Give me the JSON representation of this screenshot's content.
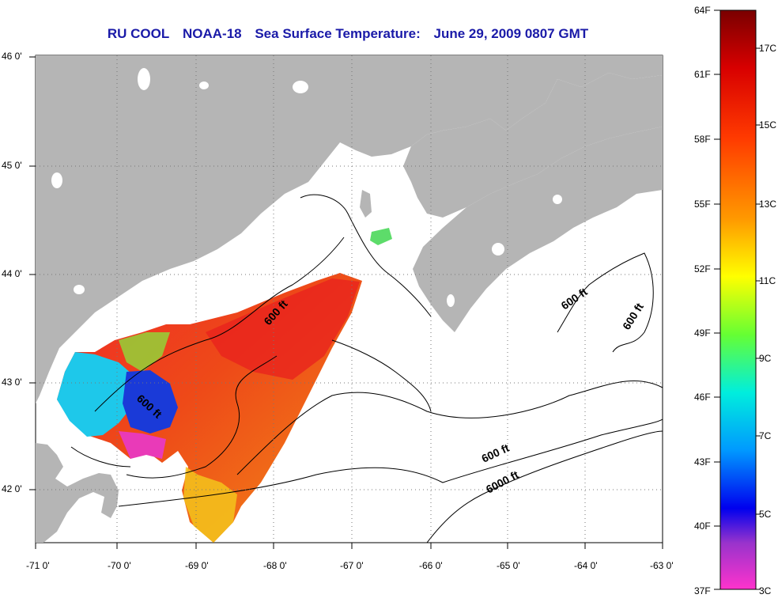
{
  "title": {
    "org": "RU COOL",
    "satellite": "NOAA-18",
    "product": "Sea Surface Temperature:",
    "datetime": "June 29, 2009 0807 GMT"
  },
  "axes": {
    "lon_labels": [
      "-71 0'",
      "-70 0'",
      "-69 0'",
      "-68 0'",
      "-67 0'",
      "-66 0'",
      "-65 0'",
      "-64 0'",
      "-63 0'"
    ],
    "lat_labels": [
      "46 0'",
      "45 0'",
      "44 0'",
      "43 0'",
      "42 0'"
    ]
  },
  "contour_labels": [
    "600 ft",
    "600 ft",
    "600 ft",
    "600 ft",
    "600 ft",
    "6000 ft"
  ],
  "colorbar": {
    "fahrenheit": [
      "64F",
      "61F",
      "58F",
      "55F",
      "52F",
      "49F",
      "46F",
      "43F",
      "40F",
      "37F"
    ],
    "celsius": [
      "17C",
      "15C",
      "13C",
      "11C",
      "9C",
      "7C",
      "5C",
      "3C"
    ]
  },
  "colors": {
    "land": "#b5b5b5",
    "title": "#1a1aa8"
  }
}
